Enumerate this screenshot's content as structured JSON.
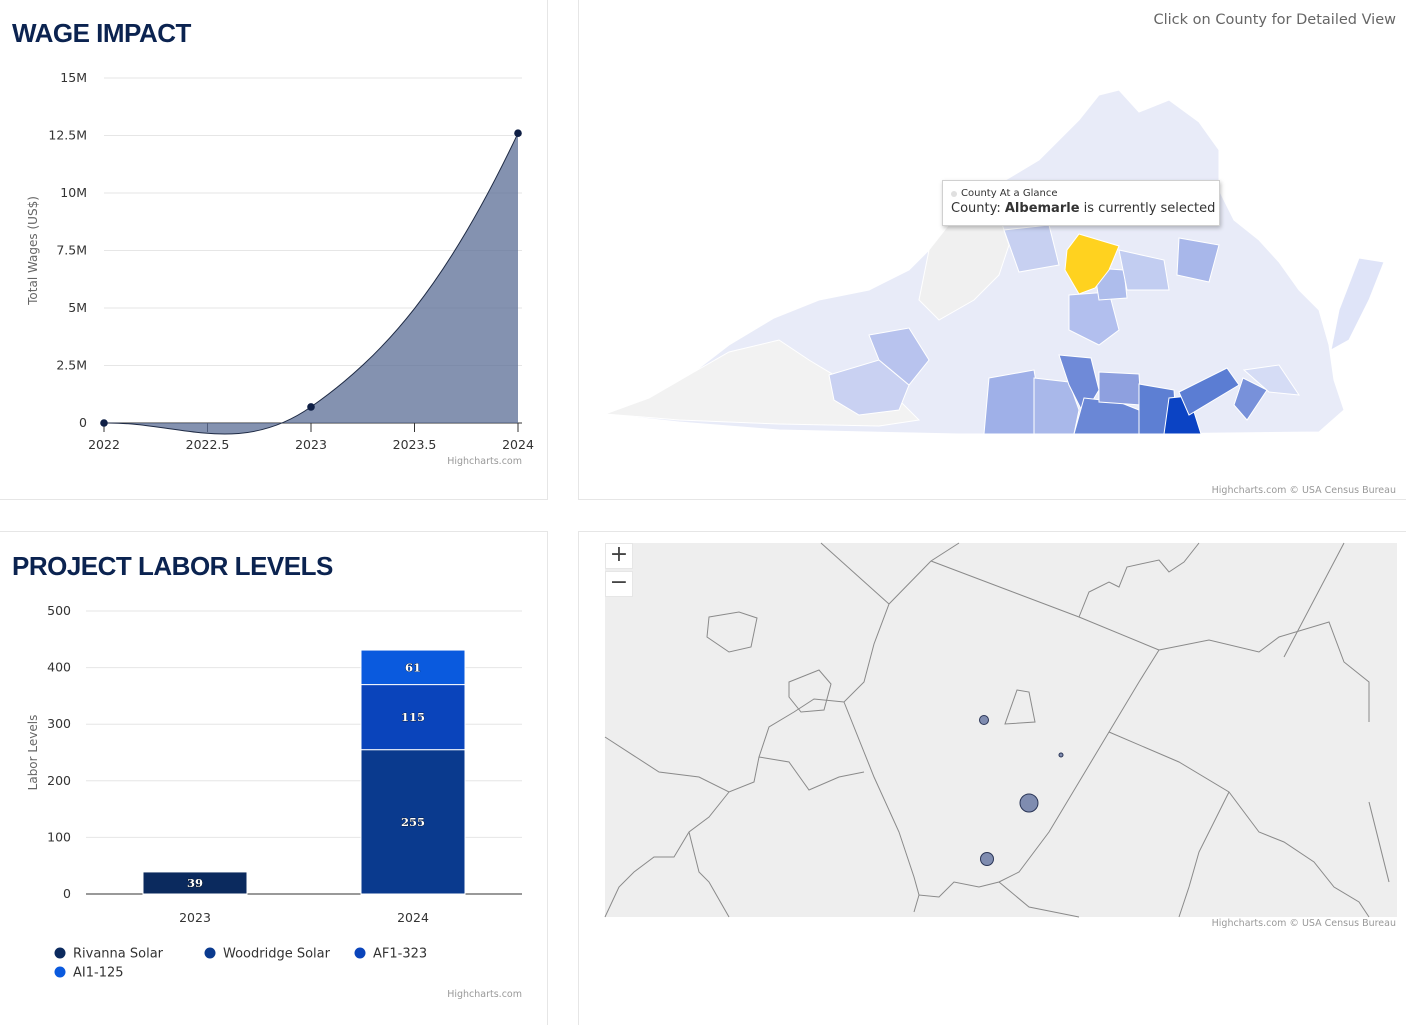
{
  "wage": {
    "title": "WAGE IMPACT",
    "credit": "Highcharts.com"
  },
  "labor": {
    "title": "PROJECT LABOR LEVELS",
    "credit": "Highcharts.com"
  },
  "map": {
    "hint": "Click on County for Detailed View",
    "credit": "Highcharts.com © USA Census Bureau",
    "tooltip": {
      "header": "County At a Glance",
      "prefix": "County: ",
      "county": "Albemarle",
      "suffix": " is currently selected"
    },
    "colors": {
      "selected": "#ffd21f",
      "light": "#e6e9fb",
      "mid": "#8fa3e0",
      "dark": "#1f4fc4",
      "darkest": "#0b3fbf",
      "none": "#f2f2f2"
    }
  },
  "detail_map": {
    "zoom_in": "+",
    "zoom_out": "−",
    "credit": "Highcharts.com © USA Census Bureau"
  },
  "chart_data": [
    {
      "type": "area",
      "x": [
        2022,
        2023,
        2024
      ],
      "y": [
        0,
        700000,
        12600000
      ],
      "xlabel": "",
      "ylabel": "Total Wages (US$)",
      "ylim": [
        0,
        15000000
      ],
      "xlim": [
        2022,
        2024
      ],
      "yticks": [
        "0",
        "2.5M",
        "5M",
        "7.5M",
        "10M",
        "12.5M",
        "15M"
      ],
      "ytick_values": [
        0,
        2500000,
        5000000,
        7500000,
        10000000,
        12500000,
        15000000
      ],
      "xticks": [
        "2022",
        "2022.5",
        "2023",
        "2023.5",
        "2024"
      ],
      "xtick_values": [
        2022,
        2022.5,
        2023,
        2023.5,
        2024
      ],
      "color": "#5b6e96",
      "grid": true
    },
    {
      "type": "bar",
      "stacked": true,
      "categories": [
        "2023",
        "2024"
      ],
      "series": [
        {
          "name": "Rivanna Solar",
          "color": "#0b2a5e",
          "values": [
            39,
            0
          ]
        },
        {
          "name": "Woodridge Solar",
          "color": "#0a3a8e",
          "values": [
            0,
            255
          ]
        },
        {
          "name": "AF1-323",
          "color": "#0a44bb",
          "values": [
            0,
            115
          ]
        },
        {
          "name": "AI1-125",
          "color": "#0a5ade",
          "values": [
            0,
            61
          ]
        }
      ],
      "data_labels": [
        [
          "39",
          ""
        ],
        [
          "",
          "255"
        ],
        [
          "",
          "115"
        ],
        [
          "",
          "61"
        ]
      ],
      "xlabel": "",
      "ylabel": "Labor Levels",
      "ylim": [
        0,
        500
      ],
      "yticks": [
        "0",
        "100",
        "200",
        "300",
        "400",
        "500"
      ],
      "ytick_values": [
        0,
        100,
        200,
        300,
        400,
        500
      ],
      "legend_position": "bottom-left",
      "grid": true
    }
  ]
}
